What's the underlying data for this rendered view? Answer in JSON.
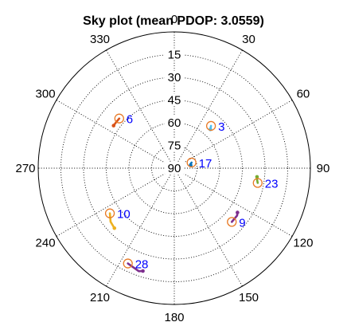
{
  "chart_data": {
    "type": "scatter",
    "subtype": "polar-sky-plot",
    "title": "Sky plot (mean PDOP: 3.0559)",
    "azimuth_ticks": [
      0,
      30,
      60,
      90,
      120,
      150,
      180,
      210,
      240,
      270,
      300,
      330
    ],
    "azimuth_tick_labels": [
      "0",
      "30",
      "60",
      "90",
      "120",
      "150",
      "180",
      "210",
      "240",
      "270",
      "300",
      "330"
    ],
    "elevation_ticks": [
      15,
      30,
      45,
      60,
      75,
      90
    ],
    "elevation_tick_labels": [
      "15",
      "30",
      "45",
      "60",
      "75",
      "90"
    ],
    "elevation_range": [
      0,
      90
    ],
    "azimuth_direction": "clockwise, 0 at top",
    "grid": true,
    "marker": "open circle at current position",
    "marker_color": "#e87a26",
    "satellites": [
      {
        "prn": "3",
        "color": "#4dbeee",
        "track": [
          [
            41,
            53
          ],
          [
            43,
            55
          ]
        ]
      },
      {
        "prn": "6",
        "color": "#d95319",
        "track": [
          [
            312,
            41
          ],
          [
            308,
            41
          ],
          [
            305,
            41
          ]
        ]
      },
      {
        "prn": "17",
        "color": "#0072bd",
        "track": [
          [
            72,
            78
          ],
          [
            76,
            79
          ],
          [
            80,
            79
          ]
        ]
      },
      {
        "prn": "23",
        "color": "#77ac30",
        "track": [
          [
            100,
            34
          ],
          [
            97,
            35
          ],
          [
            96,
            35
          ]
        ]
      },
      {
        "prn": "9",
        "color": "#7e2f8e",
        "track": [
          [
            133,
            38
          ],
          [
            127,
            38
          ],
          [
            125,
            39
          ]
        ]
      },
      {
        "prn": "10",
        "color": "#edb120",
        "track": [
          [
            235,
            38
          ],
          [
            230,
            35
          ],
          [
            225,
            34
          ]
        ]
      },
      {
        "prn": "28",
        "color": "#7e2f8e",
        "track": [
          [
            206,
            20
          ],
          [
            199,
            18
          ],
          [
            197,
            19
          ]
        ]
      }
    ]
  }
}
